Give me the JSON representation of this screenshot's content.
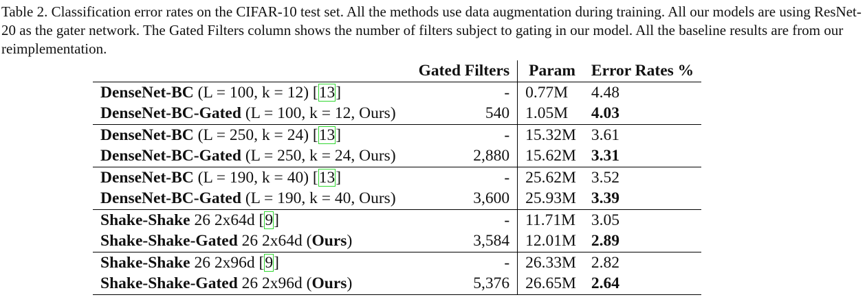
{
  "caption": "Table 2. Classification error rates on the CIFAR-10 test set. All the methods use data augmentation during training. All our models are using ResNet-20 as the gater network. The Gated Filters column shows the number of filters subject to gating in our model. All the baseline results are from our reimplementation.",
  "headers": {
    "method": "",
    "gated_filters": "Gated Filters",
    "param": "Param",
    "error_rates": "Error Rates %"
  },
  "rows": [
    {
      "name": "DenseNet-BC",
      "config": "(L = 100, k = 12)",
      "cite": "13",
      "ours": "",
      "gated": "-",
      "param": "0.77M",
      "err": "4.48",
      "best": false
    },
    {
      "name": "DenseNet-BC-Gated",
      "config": "(L = 100, k = 12, Ours)",
      "cite": "",
      "ours": "",
      "gated": "540",
      "param": "1.05M",
      "err": "4.03",
      "best": true
    },
    {
      "name": "DenseNet-BC",
      "config": "(L = 250, k = 24)",
      "cite": "13",
      "ours": "",
      "gated": "-",
      "param": "15.32M",
      "err": "3.61",
      "best": false
    },
    {
      "name": "DenseNet-BC-Gated",
      "config": "(L = 250, k = 24, Ours)",
      "cite": "",
      "ours": "",
      "gated": "2,880",
      "param": "15.62M",
      "err": "3.31",
      "best": true
    },
    {
      "name": "DenseNet-BC",
      "config": "(L = 190, k = 40)",
      "cite": "13",
      "ours": "",
      "gated": "-",
      "param": "25.62M",
      "err": "3.52",
      "best": false
    },
    {
      "name": "DenseNet-BC-Gated",
      "config": "(L = 190, k = 40, Ours)",
      "cite": "",
      "ours": "",
      "gated": "3,600",
      "param": "25.93M",
      "err": "3.39",
      "best": true
    },
    {
      "name": "Shake-Shake",
      "config": "26 2x64d",
      "cite": "9",
      "ours": "",
      "gated": "-",
      "param": "11.71M",
      "err": "3.05",
      "best": false
    },
    {
      "name": "Shake-Shake-Gated",
      "config": "26 2x64d",
      "cite": "",
      "ours": "Ours",
      "gated": "3,584",
      "param": "12.01M",
      "err": "2.89",
      "best": true
    },
    {
      "name": "Shake-Shake",
      "config": "26 2x96d",
      "cite": "9",
      "ours": "",
      "gated": "-",
      "param": "26.33M",
      "err": "2.82",
      "best": false
    },
    {
      "name": "Shake-Shake-Gated",
      "config": "26 2x96d",
      "cite": "",
      "ours": "Ours",
      "gated": "5,376",
      "param": "26.65M",
      "err": "2.64",
      "best": true
    }
  ]
}
